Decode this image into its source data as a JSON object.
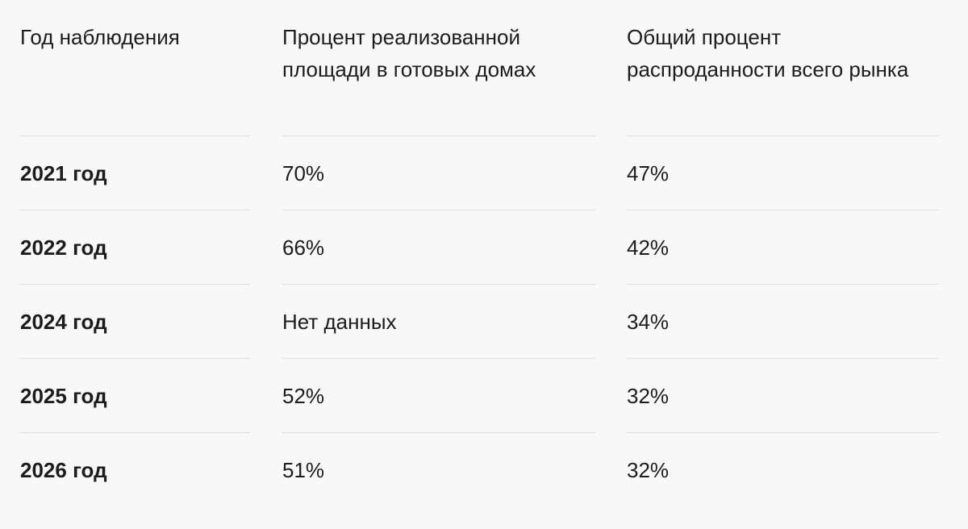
{
  "table": {
    "headers": [
      "Год наблюдения",
      "Процент реализованной площади в готовых домах",
      "Общий процент распроданности всего рынка"
    ],
    "rows": [
      {
        "year": "2021 год",
        "ready_houses_sold": "70%",
        "market_sold": "47%"
      },
      {
        "year": "2022 год",
        "ready_houses_sold": "66%",
        "market_sold": "42%"
      },
      {
        "year": "2024 год",
        "ready_houses_sold": "Нет данных",
        "market_sold": "34%"
      },
      {
        "year": "2025 год",
        "ready_houses_sold": "52%",
        "market_sold": "32%"
      },
      {
        "year": "2026 год",
        "ready_houses_sold": "51%",
        "market_sold": "32%"
      }
    ]
  }
}
